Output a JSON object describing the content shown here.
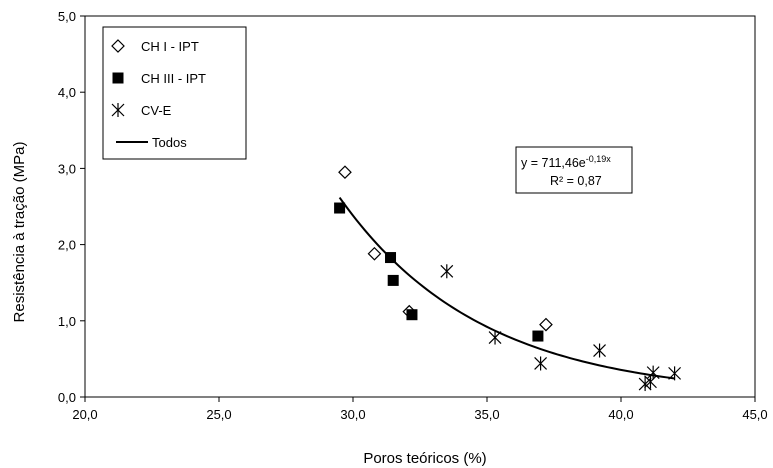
{
  "chart_data": {
    "type": "scatter",
    "title": "",
    "xlabel": "Poros teóricos (%)",
    "ylabel": "Resistência à tração (MPa)",
    "xlim": [
      20.0,
      45.0
    ],
    "ylim": [
      0.0,
      5.0
    ],
    "x_ticks": [
      20.0,
      25.0,
      30.0,
      35.0,
      40.0,
      45.0
    ],
    "y_ticks": [
      0.0,
      1.0,
      2.0,
      3.0,
      4.0,
      5.0
    ],
    "x_tick_labels": [
      "20,0",
      "25,0",
      "30,0",
      "35,0",
      "40,0",
      "45,0"
    ],
    "y_tick_labels": [
      "0,0",
      "1,0",
      "2,0",
      "3,0",
      "4,0",
      "5,0"
    ],
    "grid": false,
    "legend_position": "top-left",
    "series": [
      {
        "name": "CH I - IPT",
        "marker": "diamond-open",
        "points": [
          [
            29.7,
            2.95
          ],
          [
            30.8,
            1.88
          ],
          [
            32.1,
            1.12
          ],
          [
            37.2,
            0.95
          ]
        ]
      },
      {
        "name": "CH III - IPT",
        "marker": "square-filled",
        "points": [
          [
            29.5,
            2.48
          ],
          [
            31.4,
            1.83
          ],
          [
            31.5,
            1.53
          ],
          [
            32.2,
            1.08
          ],
          [
            36.9,
            0.8
          ]
        ]
      },
      {
        "name": "CV-E",
        "marker": "star",
        "points": [
          [
            33.5,
            1.65
          ],
          [
            35.3,
            0.78
          ],
          [
            37.0,
            0.44
          ],
          [
            39.2,
            0.61
          ],
          [
            40.9,
            0.17
          ],
          [
            41.2,
            0.32
          ],
          [
            41.1,
            0.2
          ],
          [
            42.0,
            0.31
          ]
        ]
      },
      {
        "name": "Todos",
        "marker": "line",
        "fit": {
          "a": 711.46,
          "b": -0.19,
          "x_from": 29.5,
          "x_to": 42.0
        }
      }
    ],
    "annotation": {
      "equation_main": "y = 711,46e",
      "equation_exp": "-0,19x",
      "r2": "R² = 0,87"
    }
  }
}
